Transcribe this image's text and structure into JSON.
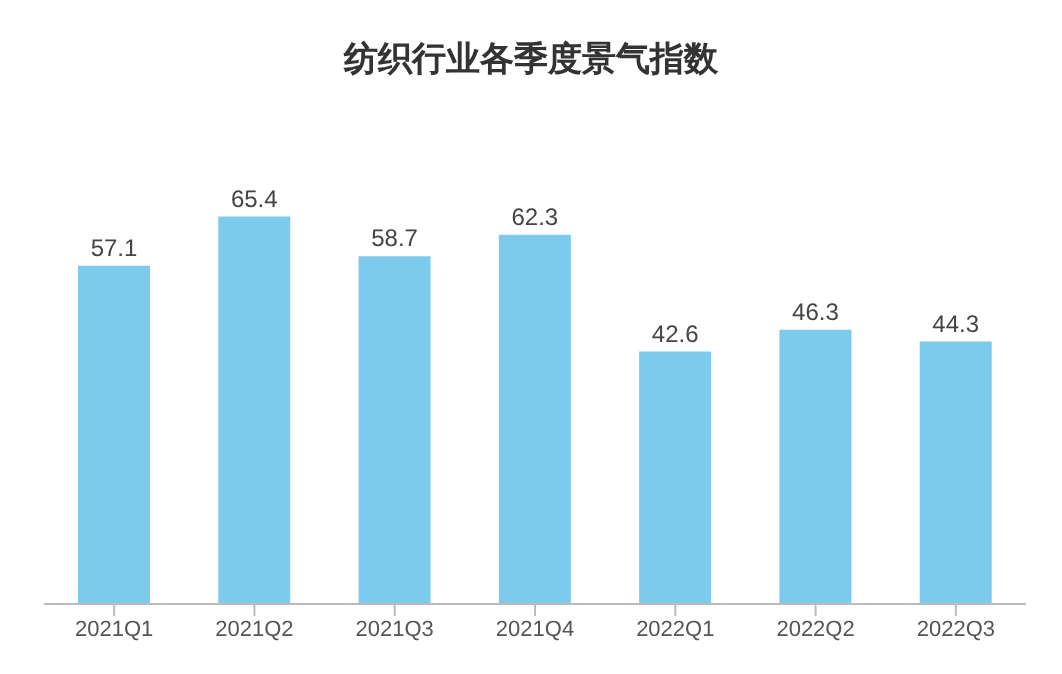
{
  "chart_data": {
    "type": "bar",
    "title": "纺织行业各季度景气指数",
    "categories": [
      "2021Q1",
      "2021Q2",
      "2021Q3",
      "2021Q4",
      "2022Q1",
      "2022Q2",
      "2022Q3"
    ],
    "values": [
      57.1,
      65.4,
      58.7,
      62.3,
      42.6,
      46.3,
      44.3
    ],
    "color": "#7dcbec",
    "data_labels": true,
    "tick_labels": "x"
  }
}
